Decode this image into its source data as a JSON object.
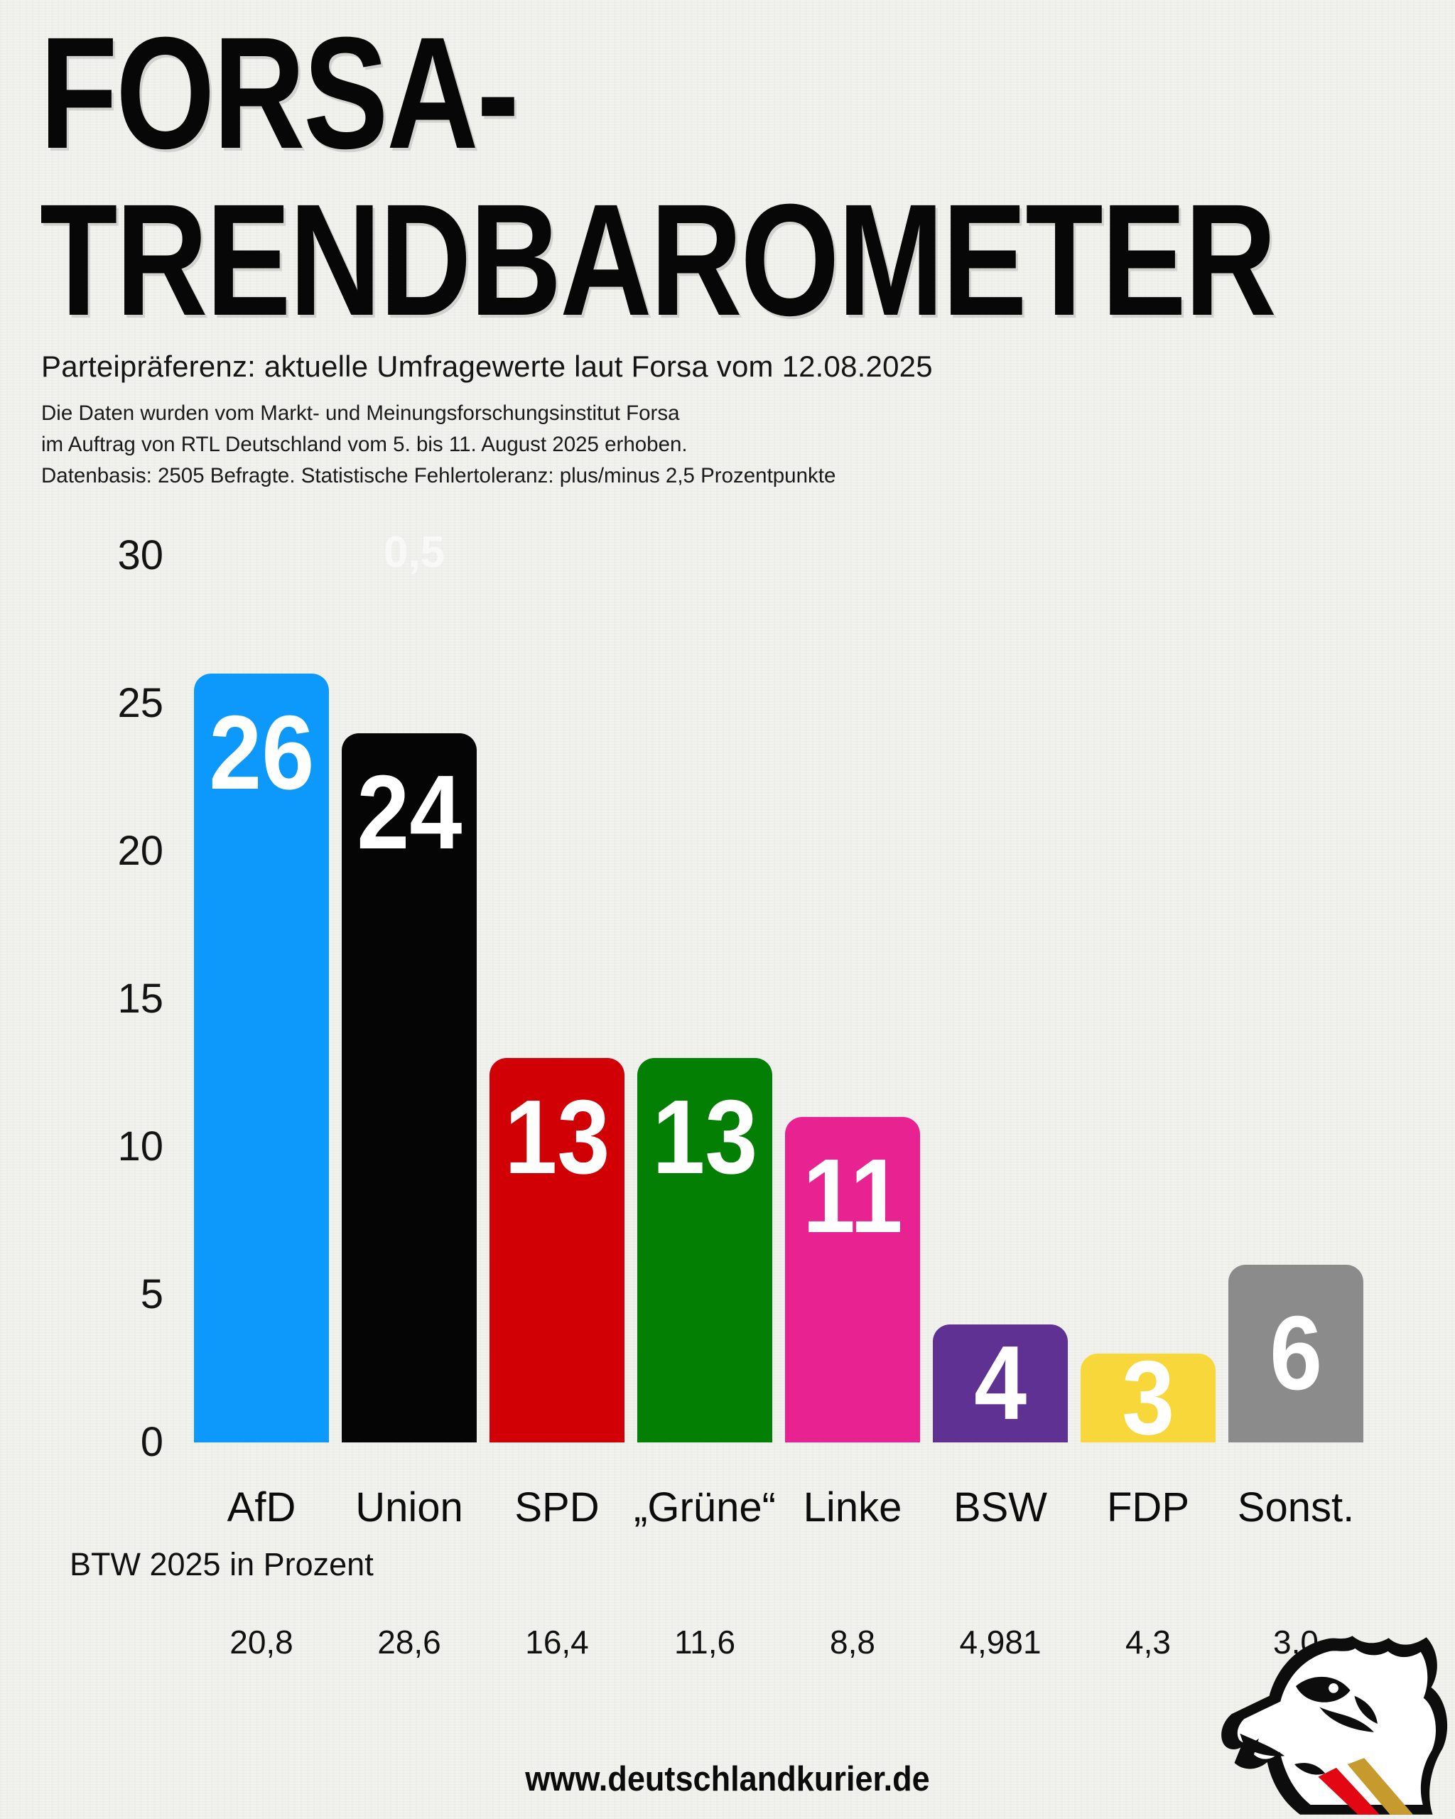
{
  "title": {
    "line1": "FORSA-",
    "line2": "TRENDBAROMETER"
  },
  "subtitle": "Parteipräferenz: aktuelle Umfragewerte laut Forsa vom 12.08.2025",
  "source_lines": [
    "Die Daten wurden vom Markt- und Meinungsforschungsinstitut Forsa",
    "im Auftrag von RTL Deutschland vom 5. bis 11. August 2025 erhoben.",
    "Datenbasis: 2505 Befragte. Statistische Fehlertoleranz: plus/minus 2,5 Prozentpunkte"
  ],
  "watermark": "0,5",
  "chart_data": {
    "type": "bar",
    "title": "Forsa-Trendbarometer Parteipräferenz 12.08.2025",
    "categories": [
      "AfD",
      "Union",
      "SPD",
      "„Grüne“",
      "Linke",
      "BSW",
      "FDP",
      "Sonst."
    ],
    "keys": [
      "afd",
      "union",
      "spd",
      "gruene",
      "linke",
      "bsw",
      "fdp",
      "sonstige"
    ],
    "values": [
      26,
      24,
      13,
      13,
      11,
      4,
      3,
      6
    ],
    "colors": [
      "#0d99fb",
      "#050505",
      "#d10005",
      "#038003",
      "#e82291",
      "#5e3192",
      "#f8d73a",
      "#8b8b8b"
    ],
    "value_label_color": "#ffffff",
    "ylim": [
      0,
      30
    ],
    "yticks": [
      30,
      25,
      20,
      15,
      10,
      5,
      0
    ],
    "grid": false,
    "legend": false,
    "xlabel": "",
    "ylabel": "",
    "btw_label": "BTW 2025 in Prozent",
    "btw_values": [
      "20,8",
      "28,6",
      "16,4",
      "11,6",
      "8,8",
      "4,981",
      "4,3",
      "3,0"
    ]
  },
  "footer": {
    "url": "www.deutschlandkurier.de"
  },
  "logo": {
    "name": "deutschlandkurier-eagle",
    "stripe_red": "#e30613",
    "stripe_gold": "#c79a2d"
  }
}
